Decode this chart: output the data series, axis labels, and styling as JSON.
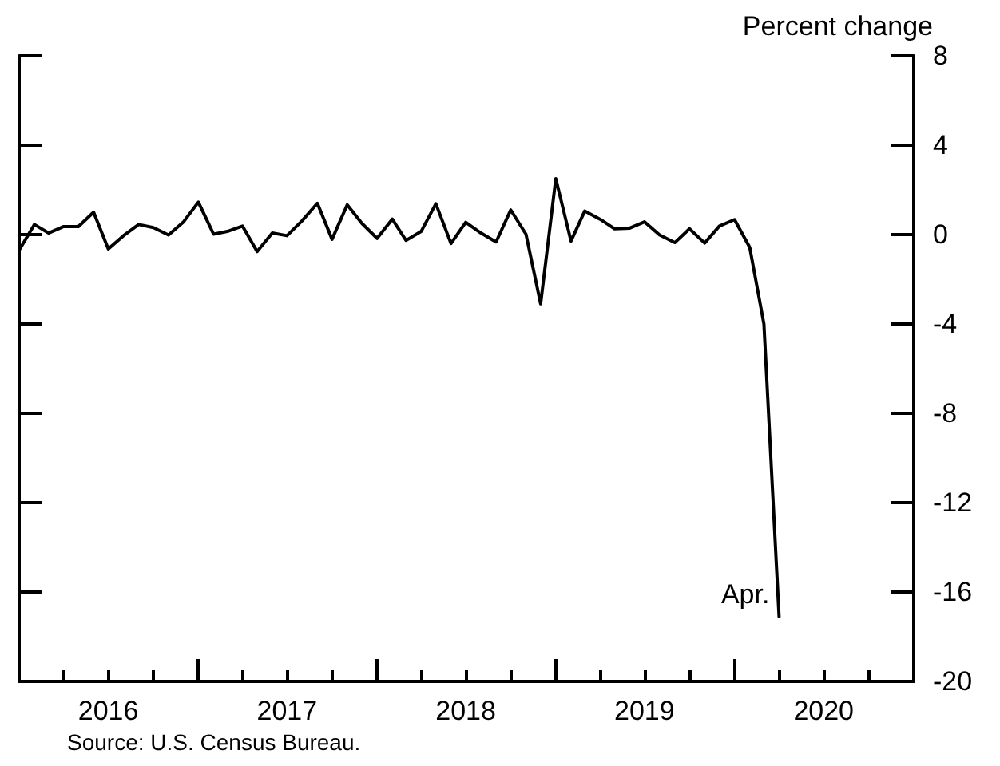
{
  "chart_data": {
    "type": "line",
    "ylabel": "Percent change",
    "annotations": [
      {
        "text": "Apr.",
        "x": "2020-04",
        "y": -17.1
      },
      "Source: U.S. Census Bureau."
    ],
    "x": [
      "2016-01",
      "2016-02",
      "2016-03",
      "2016-04",
      "2016-05",
      "2016-06",
      "2016-07",
      "2016-08",
      "2016-09",
      "2016-10",
      "2016-11",
      "2016-12",
      "2017-01",
      "2017-02",
      "2017-03",
      "2017-04",
      "2017-05",
      "2017-06",
      "2017-07",
      "2017-08",
      "2017-09",
      "2017-10",
      "2017-11",
      "2017-12",
      "2018-01",
      "2018-02",
      "2018-03",
      "2018-04",
      "2018-05",
      "2018-06",
      "2018-07",
      "2018-08",
      "2018-09",
      "2018-10",
      "2018-11",
      "2018-12",
      "2019-01",
      "2019-02",
      "2019-03",
      "2019-04",
      "2019-05",
      "2019-06",
      "2019-07",
      "2019-08",
      "2019-09",
      "2019-10",
      "2019-11",
      "2019-12",
      "2020-01",
      "2020-02",
      "2020-03",
      "2020-04"
    ],
    "series": [
      {
        "color": "#000000",
        "values": [
          -0.7,
          0.45,
          0.07,
          0.36,
          0.36,
          1.0,
          -0.64,
          -0.05,
          0.45,
          0.31,
          -0.02,
          0.55,
          1.45,
          0.02,
          0.14,
          0.38,
          -0.76,
          0.07,
          -0.05,
          0.62,
          1.4,
          -0.21,
          1.33,
          0.5,
          -0.17,
          0.69,
          -0.26,
          0.14,
          1.38,
          -0.4,
          0.55,
          0.07,
          -0.33,
          1.1,
          0.02,
          -3.1,
          2.5,
          -0.29,
          1.05,
          0.69,
          0.26,
          0.29,
          0.57,
          -0.02,
          -0.36,
          0.26,
          -0.38,
          0.38,
          0.67,
          -0.57,
          -4.0,
          -17.1
        ]
      }
    ],
    "xlim": [
      "2016-01",
      "2021-01"
    ],
    "xticks": [
      {
        "value": "2016-01",
        "label": null
      },
      {
        "value": "2016-04",
        "label": null
      },
      {
        "value": "2016-07",
        "label": "2016"
      },
      {
        "value": "2016-10",
        "label": null
      },
      {
        "value": "2017-01",
        "label": null
      },
      {
        "value": "2017-04",
        "label": null
      },
      {
        "value": "2017-07",
        "label": "2017"
      },
      {
        "value": "2017-10",
        "label": null
      },
      {
        "value": "2018-01",
        "label": null
      },
      {
        "value": "2018-04",
        "label": null
      },
      {
        "value": "2018-07",
        "label": "2018"
      },
      {
        "value": "2018-10",
        "label": null
      },
      {
        "value": "2019-01",
        "label": null
      },
      {
        "value": "2019-04",
        "label": null
      },
      {
        "value": "2019-07",
        "label": "2019"
      },
      {
        "value": "2019-10",
        "label": null
      },
      {
        "value": "2020-01",
        "label": null
      },
      {
        "value": "2020-04",
        "label": null
      },
      {
        "value": "2020-07",
        "label": "2020"
      },
      {
        "value": "2020-10",
        "label": null
      },
      {
        "value": "2021-01",
        "label": null
      }
    ],
    "ylim": [
      -20,
      8
    ],
    "yticks": [
      -20,
      -16,
      -12,
      -8,
      -4,
      0,
      4,
      8
    ],
    "grid": false,
    "marker": "none",
    "line_style": "solid"
  }
}
